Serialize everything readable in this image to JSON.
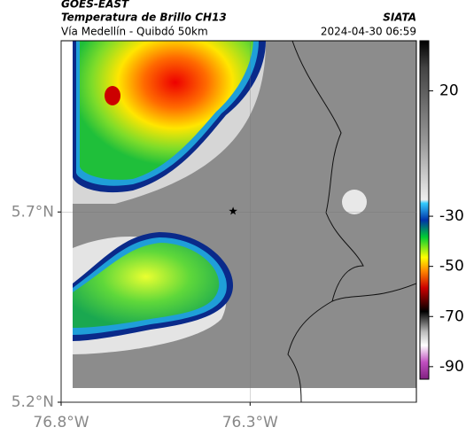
{
  "header": {
    "title": "GOES-EAST",
    "subtitle": "Temperatura de Brillo CH13",
    "route": "Vía Medellín - Quibdó 50km",
    "source": "SIATA",
    "timestamp": "2024-04-30 06:59"
  },
  "chart_data": {
    "type": "map",
    "xlim": [
      -76.8,
      -75.86
    ],
    "ylim": [
      5.2,
      6.15
    ],
    "xticks": [
      {
        "value": -76.8,
        "label": "76.8°W"
      },
      {
        "value": -76.3,
        "label": "76.3°W"
      }
    ],
    "yticks": [
      {
        "value": 5.7,
        "label": "5.7°N"
      },
      {
        "value": 5.2,
        "label": "5.2°N"
      }
    ],
    "grid": true,
    "colorbar": {
      "lim": [
        40,
        -95
      ],
      "ticks": [
        20,
        -30,
        -50,
        -70,
        -90
      ]
    },
    "marker": {
      "lon": -76.345,
      "lat": 5.702
    }
  }
}
